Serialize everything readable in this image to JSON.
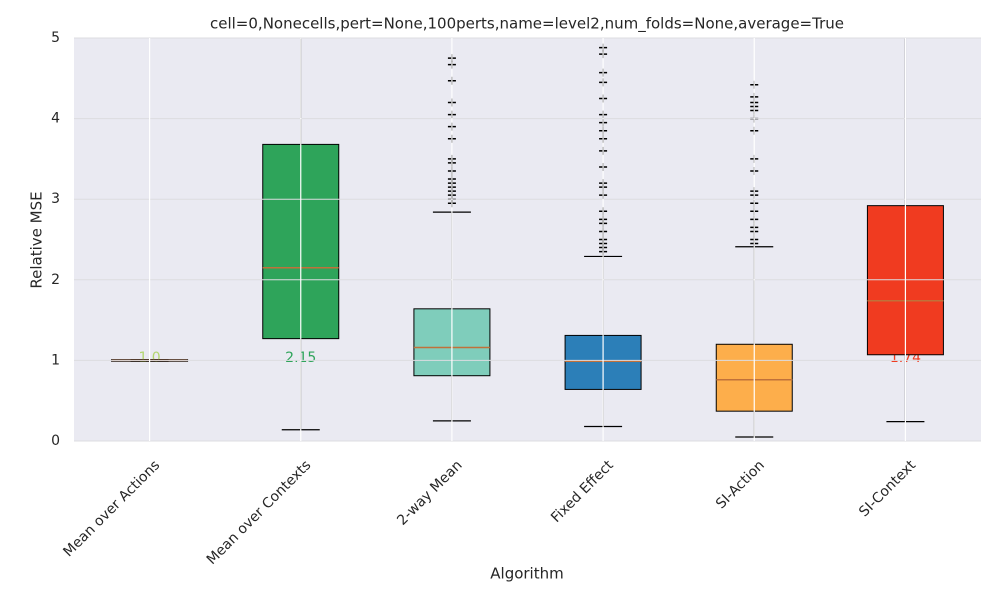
{
  "chart_data": {
    "type": "box",
    "title": "cell=0,Nonecells,pert=None,100perts,name=level2,num_folds=None,average=True",
    "x_label": "Algorithm",
    "y_label": "Relative MSE",
    "categories": [
      "Mean over Actions",
      "Mean over Contexts",
      "2-way Mean",
      "Fixed Effect",
      "SI-Action",
      "SI-Context"
    ],
    "ylim": [
      0,
      5
    ],
    "yticks": [
      0,
      1,
      2,
      3,
      4,
      5
    ],
    "grid": true,
    "boxes": [
      {
        "low": 0.99,
        "q1": 0.99,
        "median": 1.0,
        "q3": 1.01,
        "high": 1.01,
        "fliers": [],
        "color": "#b3d66f",
        "median_label": "1.0"
      },
      {
        "low": 0.14,
        "q1": 1.27,
        "median": 2.15,
        "q3": 3.68,
        "high": 5.6,
        "fliers": [],
        "color": "#2ea45a",
        "median_label": "2.15"
      },
      {
        "low": 0.25,
        "q1": 0.81,
        "median": 1.16,
        "q3": 1.64,
        "high": 2.84,
        "fliers": [
          2.95,
          3.0,
          3.05,
          3.1,
          3.15,
          3.2,
          3.25,
          3.35,
          3.45,
          3.5,
          3.75,
          3.9,
          4.05,
          4.2,
          4.47,
          4.67,
          4.75
        ],
        "color": "#7fcdbb"
      },
      {
        "low": 0.18,
        "q1": 0.64,
        "median": 0.99,
        "q3": 1.31,
        "high": 2.29,
        "fliers": [
          2.35,
          2.4,
          2.45,
          2.5,
          2.6,
          2.7,
          2.75,
          2.85,
          3.05,
          3.15,
          3.2,
          3.4,
          3.6,
          3.75,
          3.85,
          3.95,
          4.05,
          4.25,
          4.45,
          4.57,
          4.8,
          4.88
        ],
        "color": "#2c7fb8"
      },
      {
        "low": 0.05,
        "q1": 0.37,
        "median": 0.76,
        "q3": 1.2,
        "high": 2.41,
        "fliers": [
          2.45,
          2.5,
          2.6,
          2.65,
          2.75,
          2.85,
          2.95,
          3.05,
          3.1,
          3.35,
          3.5,
          3.85,
          4.0,
          4.1,
          4.15,
          4.2,
          4.27,
          4.42
        ],
        "color": "#fdae4b"
      },
      {
        "low": 0.24,
        "q1": 1.07,
        "median": 1.74,
        "q3": 2.92,
        "high": 5.6,
        "fliers": [],
        "color": "#f03b20",
        "median_label": "1.74"
      }
    ]
  }
}
